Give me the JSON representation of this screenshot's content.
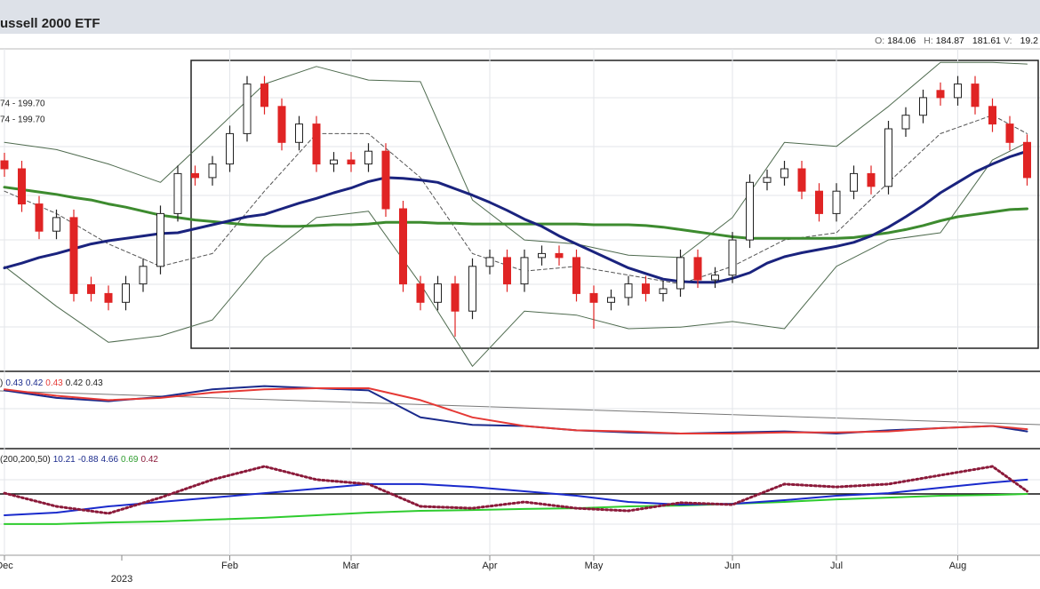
{
  "header": {
    "title": "ussell 2000 ETF",
    "year": "2023",
    "quote": [
      {
        "text": "O:",
        "color": "#666"
      },
      {
        "text": "184.06",
        "color": "#111"
      },
      {
        "text": "H:",
        "color": "#666"
      },
      {
        "text": "184.87",
        "color": "#111"
      },
      {
        "text": "181.61",
        "color": "#111"
      },
      {
        "text": "V:",
        "color": "#666"
      },
      {
        "text": "19.2",
        "color": "#111"
      }
    ]
  },
  "chart_data": [
    {
      "type": "candlestick",
      "legend": [
        {
          "text": "74 - 199.70",
          "color": "#2e7d32"
        },
        {
          "text": "74 - 199.70",
          "color": "#d500f9"
        }
      ],
      "categories": [
        "Dec",
        null,
        null,
        null,
        null,
        null,
        null,
        null,
        null,
        null,
        null,
        null,
        null,
        "Feb",
        null,
        null,
        null,
        null,
        null,
        null,
        "Mar",
        null,
        null,
        null,
        null,
        null,
        null,
        null,
        "Apr",
        null,
        null,
        null,
        null,
        null,
        "May",
        null,
        null,
        null,
        null,
        null,
        null,
        null,
        "Jun",
        null,
        null,
        null,
        null,
        null,
        "Jul",
        null,
        null,
        null,
        null,
        null,
        null,
        "Aug",
        null,
        null,
        null,
        null
      ],
      "open": [
        186.0,
        185.0,
        180.6,
        177.2,
        178.9,
        170.5,
        169.4,
        168.3,
        170.6,
        172.8,
        179.4,
        184.4,
        183.9,
        185.6,
        189.4,
        195.6,
        192.8,
        188.3,
        190.6,
        185.6,
        186.1,
        185.6,
        187.2,
        180.0,
        170.6,
        168.3,
        170.6,
        167.2,
        172.8,
        173.9,
        170.6,
        173.9,
        174.4,
        173.9,
        169.4,
        168.3,
        168.9,
        170.6,
        169.4,
        170.0,
        173.9,
        171.1,
        171.7,
        176.1,
        183.3,
        183.9,
        185.0,
        182.2,
        179.4,
        182.2,
        184.4,
        182.8,
        190.0,
        191.7,
        194.8,
        193.9,
        195.6,
        192.8,
        190.6,
        188.3
      ],
      "high": [
        187.0,
        186.0,
        181.6,
        179.9,
        179.9,
        171.5,
        170.4,
        171.6,
        173.8,
        180.4,
        185.4,
        185.4,
        186.6,
        190.4,
        196.6,
        196.6,
        193.8,
        191.6,
        191.6,
        187.1,
        187.1,
        188.2,
        188.2,
        181.0,
        171.6,
        171.6,
        171.6,
        173.8,
        174.9,
        174.9,
        174.9,
        175.4,
        175.4,
        174.9,
        170.4,
        169.9,
        171.6,
        171.6,
        171.0,
        174.9,
        174.9,
        172.7,
        177.1,
        184.3,
        184.9,
        186.0,
        186.0,
        183.2,
        183.2,
        185.4,
        185.4,
        191.0,
        192.7,
        194.9,
        195.8,
        196.6,
        196.6,
        193.8,
        191.6,
        189.3
      ],
      "low": [
        184.0,
        179.6,
        176.2,
        176.2,
        168.4,
        168.4,
        167.3,
        167.3,
        169.6,
        171.8,
        178.4,
        182.9,
        182.9,
        184.6,
        188.4,
        191.8,
        187.3,
        187.3,
        184.6,
        184.6,
        184.6,
        184.6,
        179.0,
        169.6,
        167.3,
        167.3,
        164.0,
        166.2,
        171.8,
        169.6,
        169.6,
        172.9,
        172.9,
        168.4,
        165.0,
        167.3,
        167.9,
        168.4,
        168.4,
        169.0,
        170.1,
        170.1,
        170.7,
        175.1,
        182.3,
        182.9,
        181.2,
        178.4,
        178.4,
        181.2,
        181.8,
        181.8,
        189.0,
        190.7,
        192.9,
        192.9,
        191.8,
        189.6,
        187.3,
        182.9
      ],
      "close": [
        185.0,
        180.6,
        177.2,
        178.9,
        169.4,
        169.4,
        168.3,
        170.6,
        172.8,
        179.4,
        184.4,
        183.9,
        185.6,
        189.4,
        195.6,
        192.8,
        188.3,
        190.6,
        185.6,
        186.1,
        185.6,
        187.2,
        180.0,
        170.6,
        168.3,
        170.6,
        167.2,
        172.8,
        173.9,
        170.6,
        173.9,
        174.4,
        173.9,
        169.4,
        168.3,
        168.9,
        170.6,
        169.4,
        170.0,
        173.9,
        171.1,
        171.7,
        176.1,
        183.3,
        183.9,
        185.0,
        182.2,
        179.4,
        182.2,
        184.4,
        182.8,
        190.0,
        191.7,
        193.9,
        193.9,
        195.6,
        192.8,
        190.6,
        188.3,
        183.9
      ],
      "up_color": "#ffffff",
      "down_color": "#e02424",
      "ylim": [
        160,
        200
      ],
      "lines": [
        {
          "color": "#4f6b4f",
          "width": 1,
          "style": "solid",
          "x": [
            0,
            3,
            6,
            9,
            12,
            15,
            18,
            21,
            24,
            27,
            30,
            33,
            36,
            39,
            42,
            45,
            48,
            51,
            54,
            57,
            59
          ],
          "values": [
            188.3,
            187.4,
            185.6,
            183.3,
            189.4,
            195.6,
            197.8,
            196.1,
            195.9,
            181.1,
            176.1,
            175.6,
            174.2,
            173.9,
            178.9,
            188.3,
            187.8,
            192.8,
            198.3,
            198.3,
            198.1
          ]
        },
        {
          "color": "#4f6b4f",
          "width": 1,
          "style": "solid",
          "x": [
            0,
            3,
            6,
            9,
            12,
            15,
            18,
            21,
            24,
            27,
            30,
            33,
            36,
            39,
            42,
            45,
            48,
            51,
            54,
            57,
            59
          ],
          "values": [
            172.8,
            167.8,
            163.3,
            164.1,
            166.1,
            173.9,
            178.9,
            179.7,
            170.6,
            160.3,
            167.2,
            166.7,
            165.0,
            165.2,
            165.9,
            165.0,
            172.8,
            176.1,
            177.0,
            186.1,
            188.3
          ]
        },
        {
          "color": "#555555",
          "width": 1,
          "style": "dashed",
          "x": [
            0,
            3,
            6,
            9,
            12,
            15,
            18,
            21,
            24,
            27,
            30,
            33,
            36,
            39,
            42,
            45,
            48,
            51,
            54,
            57,
            59
          ],
          "values": [
            182.2,
            179.4,
            175.6,
            172.8,
            174.4,
            182.2,
            189.4,
            189.4,
            183.9,
            174.4,
            172.2,
            172.8,
            171.7,
            170.6,
            172.8,
            176.1,
            177.0,
            183.3,
            189.4,
            191.7,
            189.4
          ]
        },
        {
          "color": "#3d8b2f",
          "width": 3,
          "style": "solid",
          "values": [
            182.7,
            182.4,
            182.1,
            181.8,
            181.4,
            181.1,
            180.6,
            180.2,
            179.7,
            179.2,
            178.9,
            178.6,
            178.4,
            178.2,
            178.0,
            177.9,
            177.8,
            177.8,
            177.9,
            178.0,
            178.0,
            178.1,
            178.3,
            178.3,
            178.3,
            178.2,
            178.2,
            178.1,
            178.1,
            178.1,
            178.1,
            178.1,
            178.1,
            178.1,
            178.0,
            178.0,
            178.0,
            177.9,
            177.7,
            177.4,
            177.1,
            176.8,
            176.5,
            176.3,
            176.3,
            176.3,
            176.3,
            176.3,
            176.3,
            176.4,
            176.7,
            177.0,
            177.4,
            177.9,
            178.5,
            179.0,
            179.3,
            179.6,
            179.9,
            180.0
          ]
        },
        {
          "color": "#1a237e",
          "width": 3,
          "style": "solid",
          "values": [
            172.6,
            173.2,
            173.9,
            174.4,
            175.0,
            175.6,
            176.0,
            176.3,
            176.6,
            176.9,
            177.0,
            177.5,
            178.0,
            178.5,
            179.0,
            179.3,
            180.0,
            180.7,
            181.3,
            182.0,
            182.6,
            183.4,
            183.9,
            183.8,
            183.6,
            183.3,
            182.5,
            181.7,
            180.8,
            179.8,
            178.7,
            177.8,
            176.6,
            175.6,
            174.6,
            173.6,
            172.6,
            171.9,
            171.2,
            170.9,
            170.8,
            170.8,
            171.3,
            172.0,
            173.2,
            174.0,
            174.5,
            174.9,
            175.3,
            175.8,
            176.6,
            177.7,
            179.0,
            180.4,
            182.0,
            183.3,
            184.6,
            185.6,
            186.5,
            187.2
          ]
        }
      ]
    },
    {
      "type": "line",
      "legend": [
        {
          "text": ")",
          "color": "#222"
        },
        {
          "text": "0.43",
          "color": "#1a2a8c"
        },
        {
          "text": "0.42",
          "color": "#1a2a8c"
        },
        {
          "text": "0.43",
          "color": "#e53935"
        },
        {
          "text": "0.42",
          "color": "#222"
        },
        {
          "text": "0.43",
          "color": "#222"
        }
      ],
      "ylim": [
        0.38,
        0.45
      ],
      "series": [
        {
          "color": "#1a2a8c",
          "width": 2,
          "style": "solid",
          "x": [
            0,
            3,
            6,
            9,
            12,
            15,
            18,
            21,
            24,
            27,
            30,
            33,
            36,
            39,
            42,
            45,
            48,
            51,
            54,
            57,
            59
          ],
          "values": [
            0.434,
            0.427,
            0.424,
            0.428,
            0.435,
            0.438,
            0.436,
            0.434,
            0.409,
            0.402,
            0.401,
            0.397,
            0.395,
            0.394,
            0.395,
            0.396,
            0.394,
            0.397,
            0.399,
            0.401,
            0.396
          ]
        },
        {
          "color": "#e53935",
          "width": 2,
          "style": "solid",
          "x": [
            0,
            3,
            6,
            9,
            12,
            15,
            18,
            21,
            24,
            27,
            30,
            33,
            36,
            39,
            42,
            45,
            48,
            51,
            54,
            57,
            59
          ],
          "values": [
            0.435,
            0.429,
            0.425,
            0.427,
            0.432,
            0.435,
            0.436,
            0.436,
            0.425,
            0.409,
            0.401,
            0.397,
            0.396,
            0.394,
            0.394,
            0.395,
            0.395,
            0.396,
            0.399,
            0.401,
            0.398
          ]
        }
      ]
    },
    {
      "type": "line",
      "legend": [
        {
          "text": "(200,200,50)",
          "color": "#222"
        },
        {
          "text": "10.21",
          "color": "#1a2a8c"
        },
        {
          "text": "-0.88",
          "color": "#1a2a8c"
        },
        {
          "text": "4.66",
          "color": "#1a2a8c"
        },
        {
          "text": "0.69",
          "color": "#2e9d2e"
        },
        {
          "text": "0.42",
          "color": "#8b1a3a"
        }
      ],
      "ylim": [
        -20,
        20
      ],
      "reference_line": 3.6,
      "series": [
        {
          "color": "#2ecc2e",
          "width": 2,
          "style": "solid",
          "x": [
            0,
            3,
            6,
            9,
            12,
            15,
            18,
            21,
            24,
            27,
            30,
            33,
            36,
            39,
            42,
            45,
            48,
            51,
            54,
            57,
            59
          ],
          "values": [
            -8.0,
            -8.0,
            -7.4,
            -7.0,
            -6.3,
            -5.6,
            -4.6,
            -3.6,
            -2.9,
            -2.6,
            -2.2,
            -1.9,
            -1.2,
            -0.9,
            -0.2,
            0.5,
            1.5,
            2.2,
            2.9,
            3.2,
            3.6
          ]
        },
        {
          "color": "#1a2acc",
          "width": 2,
          "style": "solid",
          "x": [
            0,
            3,
            6,
            9,
            12,
            15,
            18,
            21,
            24,
            27,
            30,
            33,
            36,
            39,
            42,
            45,
            48,
            51,
            54,
            57,
            59
          ],
          "values": [
            -4.6,
            -3.6,
            -1.2,
            0.5,
            2.2,
            3.9,
            5.6,
            7.4,
            7.4,
            6.3,
            4.6,
            2.9,
            0.5,
            -0.5,
            -0.2,
            1.2,
            2.9,
            3.9,
            6.0,
            8.0,
            9.1
          ]
        },
        {
          "color": "#8b1a3a",
          "width": 3,
          "style": "dotted",
          "x": [
            0,
            3,
            6,
            9,
            12,
            15,
            18,
            21,
            24,
            27,
            30,
            33,
            36,
            39,
            42,
            45,
            48,
            51,
            54,
            57,
            59
          ],
          "values": [
            3.9,
            -1.2,
            -3.9,
            2.2,
            9.1,
            14.2,
            9.1,
            7.4,
            -1.2,
            -1.9,
            0.5,
            -1.9,
            -2.9,
            0.2,
            -0.5,
            7.4,
            6.3,
            7.4,
            10.8,
            14.2,
            4.6
          ]
        }
      ]
    }
  ]
}
